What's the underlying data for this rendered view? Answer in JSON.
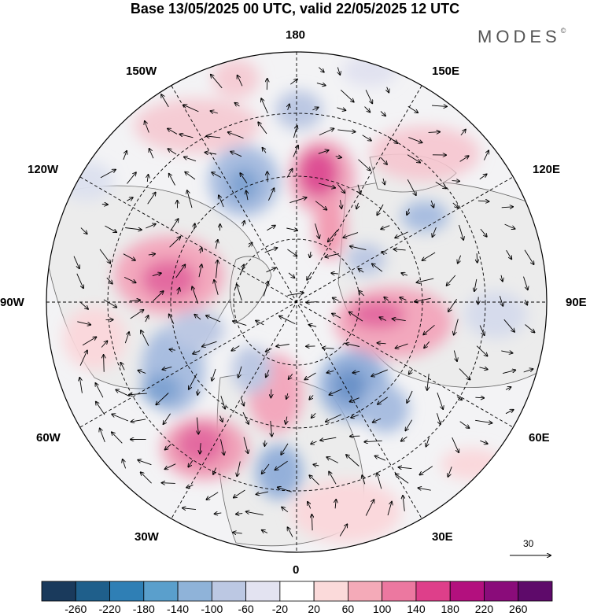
{
  "title": "Base 13/05/2025 00 UTC, valid 22/05/2025 12 UTC",
  "brand": {
    "name": "MODES",
    "mark": "©"
  },
  "longitude_labels": {
    "top": "180",
    "top_left": "150W",
    "top_right": "150E",
    "upper_left": "120W",
    "upper_right": "120E",
    "left": "90W",
    "right": "90E",
    "lower_left": "60W",
    "lower_right": "60E",
    "bottom_left": "30W",
    "bottom_right": "30E",
    "bottom": "0"
  },
  "reference_vector": {
    "value": "30"
  },
  "colorbar": {
    "ticks": [
      "-260",
      "-220",
      "-180",
      "-140",
      "-100",
      "-60",
      "-20",
      "20",
      "60",
      "100",
      "140",
      "180",
      "220",
      "260"
    ],
    "colors": [
      "#1a3a5c",
      "#1f5f8b",
      "#2f7fb5",
      "#5a9fcc",
      "#8fb3d9",
      "#bcc8e3",
      "#e3e3f1",
      "#ffffff",
      "#fbdada",
      "#f4aab8",
      "#ec78a0",
      "#de3f8a",
      "#b3107e",
      "#8a0c7a",
      "#5e0a6a"
    ]
  },
  "colors": {
    "land": "#ededed",
    "positive": "#f0a0b8",
    "negative": "#7fa0cf",
    "grid": "#000000"
  }
}
